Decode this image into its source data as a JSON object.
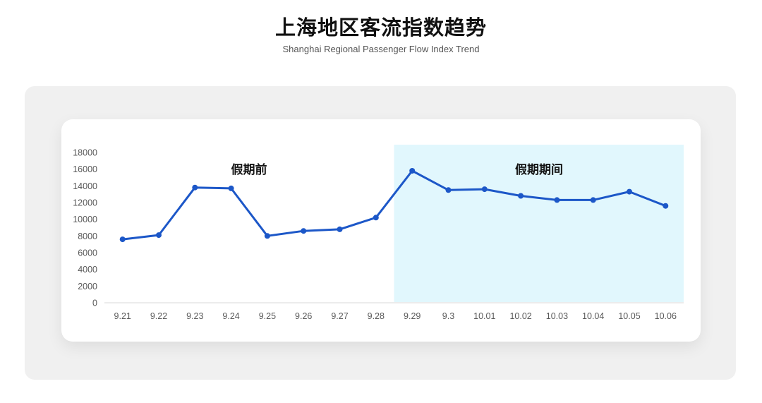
{
  "header": {
    "title": "上海地区客流指数趋势",
    "subtitle": "Shanghai Regional Passenger Flow Index Trend"
  },
  "chart_data": {
    "type": "line",
    "title": "上海地区客流指数趋势",
    "subtitle": "Shanghai Regional Passenger Flow Index Trend",
    "categories": [
      "9.21",
      "9.22",
      "9.23",
      "9.24",
      "9.25",
      "9.26",
      "9.27",
      "9.28",
      "9.29",
      "9.3",
      "10.01",
      "10.02",
      "10.03",
      "10.04",
      "10.05",
      "10.06"
    ],
    "values": [
      7600,
      8100,
      13800,
      13700,
      8000,
      8600,
      8800,
      10200,
      15800,
      13500,
      13600,
      12800,
      12300,
      12300,
      13300,
      11600
    ],
    "ylim": [
      0,
      18000
    ],
    "yticks": [
      0,
      2000,
      4000,
      6000,
      8000,
      10000,
      12000,
      14000,
      16000,
      18000
    ],
    "xlabel": "",
    "ylabel": "",
    "grid": false,
    "legend_position": "none",
    "line_color": "#1C57C8",
    "marker": "circle",
    "regions": [
      {
        "label": "假期前",
        "start_index": 0,
        "end_index": 8,
        "highlighted": false
      },
      {
        "label": "假期期间",
        "start_index": 8,
        "end_index": 16,
        "highlighted": true,
        "fill": "#E1F7FD"
      }
    ]
  },
  "colors": {
    "panel_bg": "#F0F0F0",
    "card_bg": "#FFFFFF",
    "highlight_region": "#E1F7FD",
    "line": "#1C57C8",
    "axis_label": "#595959",
    "axis_line": "#D9D9D9",
    "title_text": "#111111",
    "subtitle_text": "#555555"
  }
}
